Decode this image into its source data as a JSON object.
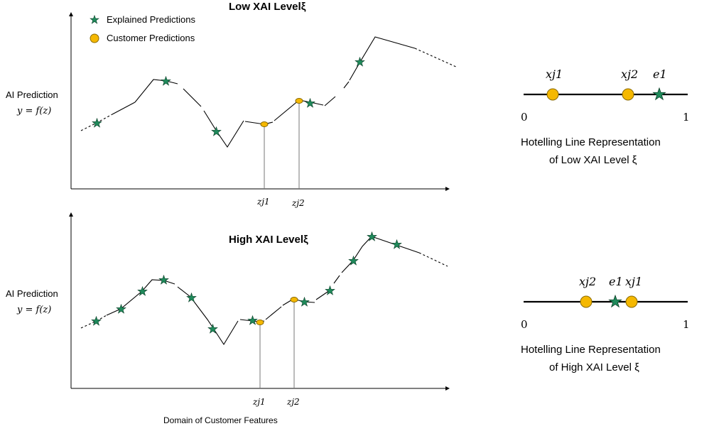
{
  "legend": {
    "explained": "Explained Predictions",
    "customer": "Customer Predictions"
  },
  "colors": {
    "star": "#1f8a5b",
    "customer_dot": "#f5b800"
  },
  "panel_low": {
    "title": "Low XAI Levelξ",
    "ylabel_line1": "AI Prediction",
    "ylabel_line2": "y = f(z)",
    "tick_zj1": "zj1",
    "tick_zj2": "zj2"
  },
  "panel_high": {
    "title": "High XAI Levelξ",
    "ylabel_line1": "AI Prediction",
    "ylabel_line2": "y = f(z)",
    "tick_zj1": "zj1",
    "tick_zj2": "zj2",
    "xlabel": "Domain of Customer Features"
  },
  "hotelling_low": {
    "label_x1": "xj1",
    "label_x2": "xj2",
    "label_e1": "e1",
    "min": "0",
    "max": "1",
    "caption_line1": "Hotelling Line Representation",
    "caption_line2": "of Low XAI Level ξ",
    "points": {
      "x_j1": 0.18,
      "x_j2": 0.64,
      "e_1": 0.83
    }
  },
  "hotelling_high": {
    "label_x1": "xj1",
    "label_x2": "xj2",
    "label_e1": "e1",
    "min": "0",
    "max": "1",
    "caption_line1": "Hotelling Line Representation",
    "caption_line2": "of High XAI Level ξ",
    "points": {
      "x_j2": 0.38,
      "e_1": 0.56,
      "x_j1": 0.66
    }
  }
}
